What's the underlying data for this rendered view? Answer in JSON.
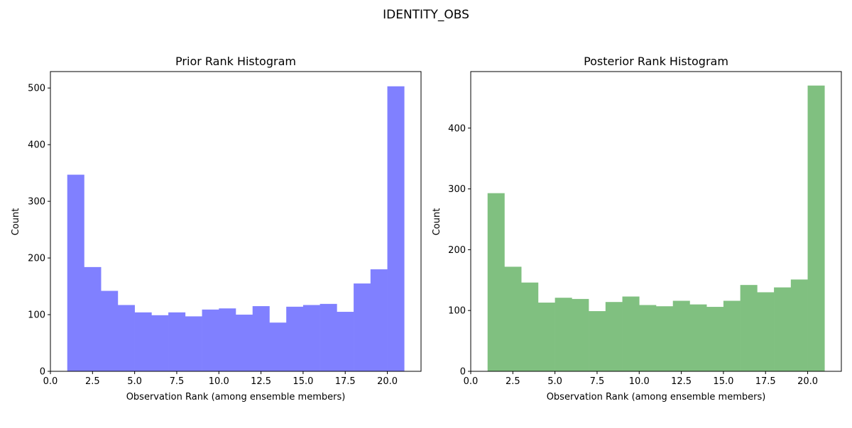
{
  "suptitle": "IDENTITY_OBS",
  "chart_data": [
    {
      "type": "bar",
      "title": "Prior Rank Histogram",
      "xlabel": "Observation Rank (among ensemble members)",
      "ylabel": "Count",
      "bin_edges": [
        1,
        2,
        3,
        4,
        5,
        6,
        7,
        8,
        9,
        10,
        11,
        12,
        13,
        14,
        15,
        16,
        17,
        18,
        19,
        20,
        21
      ],
      "values": [
        347,
        184,
        142,
        117,
        104,
        99,
        104,
        97,
        109,
        111,
        100,
        115,
        86,
        114,
        117,
        119,
        105,
        155,
        180,
        503
      ],
      "color": "#8080ff",
      "xlim": [
        0,
        22
      ],
      "ylim": [
        0,
        529
      ],
      "xticks": [
        0,
        2.5,
        5,
        7.5,
        10,
        12.5,
        15,
        17.5,
        20
      ],
      "xtick_labels": [
        "0.0",
        "2.5",
        "5.0",
        "7.5",
        "10.0",
        "12.5",
        "15.0",
        "17.5",
        "20.0"
      ],
      "yticks": [
        0,
        100,
        200,
        300,
        400,
        500
      ],
      "ytick_labels": [
        "0",
        "100",
        "200",
        "300",
        "400",
        "500"
      ]
    },
    {
      "type": "bar",
      "title": "Posterior Rank Histogram",
      "xlabel": "Observation Rank (among ensemble members)",
      "ylabel": "Count",
      "bin_edges": [
        1,
        2,
        3,
        4,
        5,
        6,
        7,
        8,
        9,
        10,
        11,
        12,
        13,
        14,
        15,
        16,
        17,
        18,
        19,
        20,
        21
      ],
      "values": [
        293,
        172,
        146,
        113,
        121,
        119,
        99,
        114,
        123,
        109,
        107,
        116,
        110,
        106,
        116,
        142,
        130,
        138,
        151,
        470
      ],
      "color": "#80c080",
      "xlim": [
        0,
        22
      ],
      "ylim": [
        0,
        493
      ],
      "xticks": [
        0,
        2.5,
        5,
        7.5,
        10,
        12.5,
        15,
        17.5,
        20
      ],
      "xtick_labels": [
        "0.0",
        "2.5",
        "5.0",
        "7.5",
        "10.0",
        "12.5",
        "15.0",
        "17.5",
        "20.0"
      ],
      "yticks": [
        0,
        100,
        200,
        300,
        400
      ],
      "ytick_labels": [
        "0",
        "100",
        "200",
        "300",
        "400"
      ]
    }
  ]
}
